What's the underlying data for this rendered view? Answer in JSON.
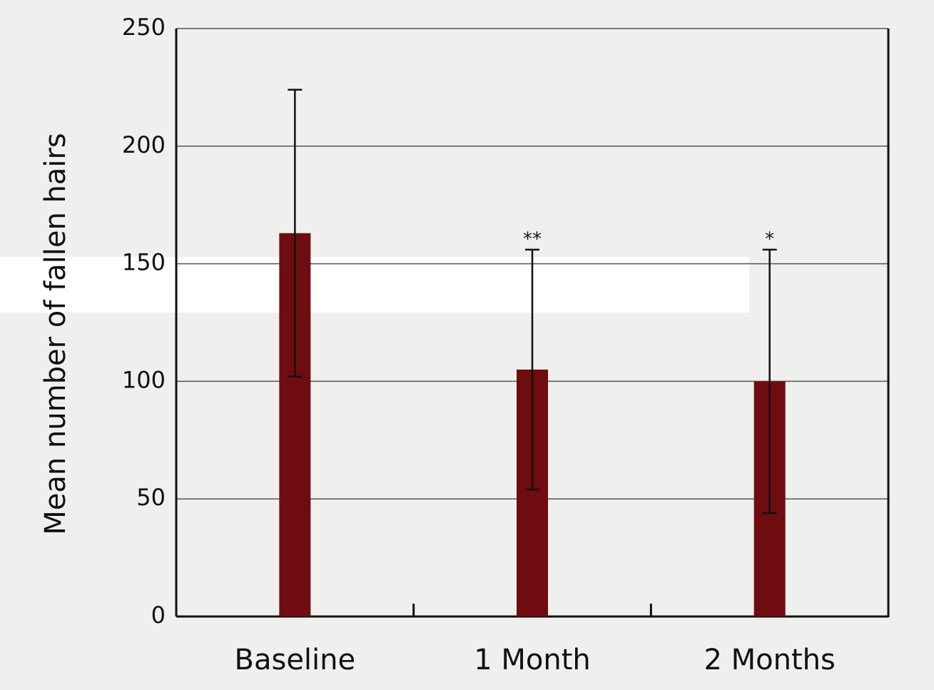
{
  "chart_data": {
    "type": "bar",
    "y_label": "Mean number of fallen hairs",
    "categories": [
      "Baseline",
      "1 Month",
      "2 Months"
    ],
    "values": [
      163,
      105,
      100
    ],
    "errors": [
      61,
      51,
      56
    ],
    "annotations": [
      null,
      "**",
      "*"
    ],
    "color": "#6e0c10",
    "ylim": [
      0,
      250
    ],
    "yticks": [
      0,
      50,
      100,
      150,
      200,
      250
    ],
    "grid": true
  }
}
